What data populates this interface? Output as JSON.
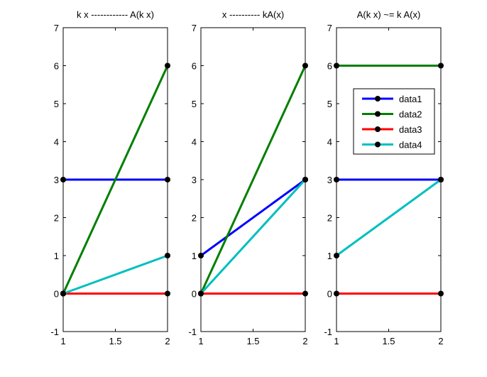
{
  "chart_data": [
    {
      "type": "line",
      "title": "k x ------------ A(k x)",
      "xlim": [
        1,
        2
      ],
      "ylim": [
        -1,
        7
      ],
      "xticks": [
        "1",
        "1.5",
        "2"
      ],
      "yticks": [
        "-1",
        "0",
        "1",
        "2",
        "3",
        "4",
        "5",
        "6",
        "7"
      ],
      "x": [
        1,
        2
      ],
      "series": [
        {
          "name": "data1",
          "color": "#0000ff",
          "values": [
            3,
            3
          ]
        },
        {
          "name": "data2",
          "color": "#007f00",
          "values": [
            0,
            6
          ]
        },
        {
          "name": "data3",
          "color": "#ff0000",
          "values": [
            0,
            0
          ]
        },
        {
          "name": "data4",
          "color": "#00bfbf",
          "values": [
            0,
            1
          ]
        }
      ]
    },
    {
      "type": "line",
      "title": "x ---------- kA(x)",
      "xlim": [
        1,
        2
      ],
      "ylim": [
        -1,
        7
      ],
      "xticks": [
        "1",
        "1.5",
        "2"
      ],
      "yticks": [
        "-1",
        "0",
        "1",
        "2",
        "3",
        "4",
        "5",
        "6",
        "7"
      ],
      "x": [
        1,
        2
      ],
      "series": [
        {
          "name": "data1",
          "color": "#0000ff",
          "values": [
            1,
            3
          ]
        },
        {
          "name": "data2",
          "color": "#007f00",
          "values": [
            0,
            6
          ]
        },
        {
          "name": "data3",
          "color": "#ff0000",
          "values": [
            0,
            0
          ]
        },
        {
          "name": "data4",
          "color": "#00bfbf",
          "values": [
            0,
            3
          ]
        }
      ]
    },
    {
      "type": "line",
      "title": "A(k x) ~= k A(x)",
      "xlim": [
        1,
        2
      ],
      "ylim": [
        -1,
        7
      ],
      "xticks": [
        "1",
        "1.5",
        "2"
      ],
      "yticks": [
        "-1",
        "0",
        "1",
        "2",
        "3",
        "4",
        "5",
        "6",
        "7"
      ],
      "x": [
        1,
        2
      ],
      "legend": {
        "placement": "top-right",
        "entries": [
          "data1",
          "data2",
          "data3",
          "data4"
        ]
      },
      "series": [
        {
          "name": "data1",
          "color": "#0000ff",
          "values": [
            3,
            3
          ]
        },
        {
          "name": "data2",
          "color": "#007f00",
          "values": [
            6,
            6
          ]
        },
        {
          "name": "data3",
          "color": "#ff0000",
          "values": [
            0,
            0
          ]
        },
        {
          "name": "data4",
          "color": "#00bfbf",
          "values": [
            1,
            3
          ]
        }
      ]
    }
  ]
}
